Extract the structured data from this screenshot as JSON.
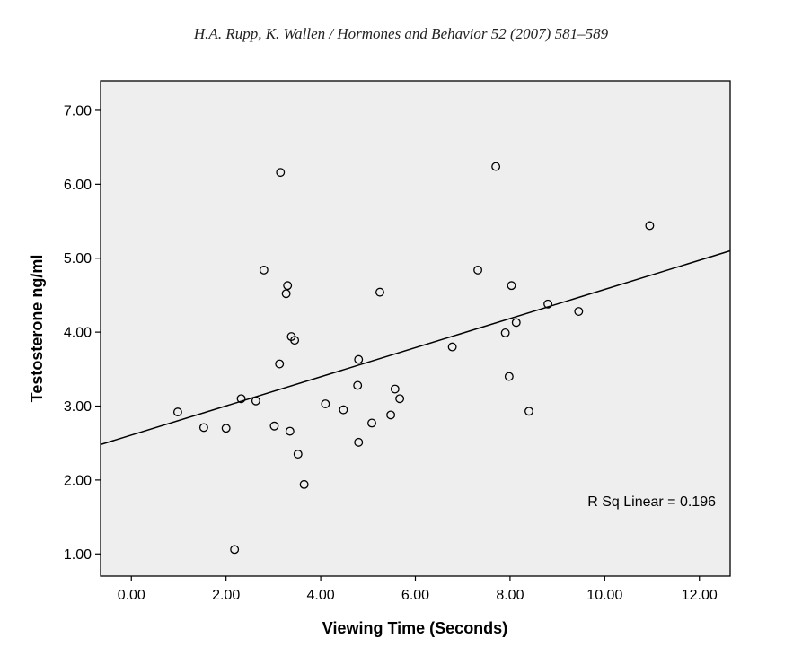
{
  "header": {
    "citation": "H.A. Rupp, K. Wallen / Hormones and Behavior 52 (2007) 581–589"
  },
  "chart_data": {
    "type": "scatter",
    "xlabel": "Viewing Time (Seconds)",
    "ylabel": "Testosterone ng/ml",
    "xlim": [
      -0.65,
      12.65
    ],
    "ylim": [
      0.7,
      7.4
    ],
    "xticks": [
      "0.00",
      "2.00",
      "4.00",
      "6.00",
      "8.00",
      "10.00",
      "12.00"
    ],
    "yticks": [
      "1.00",
      "2.00",
      "3.00",
      "4.00",
      "5.00",
      "6.00",
      "7.00"
    ],
    "grid": false,
    "background": "#eeeeee",
    "marker": "open-circle",
    "points": [
      [
        0.98,
        2.92
      ],
      [
        1.53,
        2.71
      ],
      [
        2.0,
        2.7
      ],
      [
        2.18,
        1.06
      ],
      [
        2.32,
        3.1
      ],
      [
        2.63,
        3.07
      ],
      [
        2.8,
        4.84
      ],
      [
        3.02,
        2.73
      ],
      [
        3.13,
        3.57
      ],
      [
        3.15,
        6.16
      ],
      [
        3.27,
        4.52
      ],
      [
        3.3,
        4.63
      ],
      [
        3.35,
        2.66
      ],
      [
        3.38,
        3.94
      ],
      [
        3.45,
        3.89
      ],
      [
        3.52,
        2.35
      ],
      [
        3.65,
        1.94
      ],
      [
        4.1,
        3.03
      ],
      [
        4.48,
        2.95
      ],
      [
        4.78,
        3.28
      ],
      [
        4.8,
        3.63
      ],
      [
        4.8,
        2.51
      ],
      [
        5.08,
        2.77
      ],
      [
        5.25,
        4.54
      ],
      [
        5.48,
        2.88
      ],
      [
        5.57,
        3.23
      ],
      [
        5.67,
        3.1
      ],
      [
        6.78,
        3.8
      ],
      [
        7.32,
        4.84
      ],
      [
        7.7,
        6.24
      ],
      [
        7.9,
        3.99
      ],
      [
        7.98,
        3.4
      ],
      [
        8.03,
        4.63
      ],
      [
        8.13,
        4.13
      ],
      [
        8.4,
        2.93
      ],
      [
        8.8,
        4.38
      ],
      [
        9.45,
        4.28
      ],
      [
        10.95,
        5.44
      ]
    ],
    "fit_line": {
      "x": [
        -0.65,
        12.65
      ],
      "y": [
        2.48,
        5.1
      ]
    },
    "annotation": "R Sq Linear = 0.196"
  }
}
